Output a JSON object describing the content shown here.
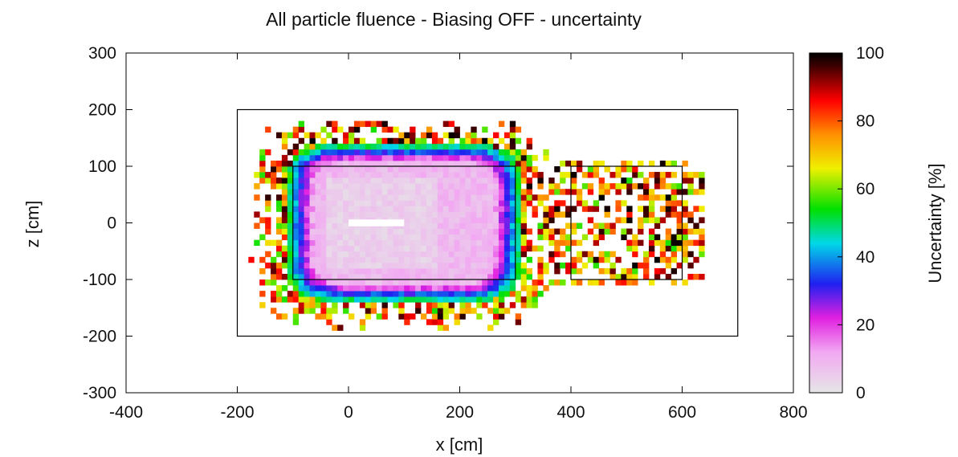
{
  "chart_data": {
    "type": "heatmap",
    "title": "All particle fluence - Biasing OFF - uncertainty",
    "xlabel": "x [cm]",
    "ylabel": "z [cm]",
    "xlim": [
      -400,
      800
    ],
    "ylim": [
      -300,
      300
    ],
    "x_ticks": [
      -400,
      -200,
      0,
      200,
      400,
      600,
      800
    ],
    "y_ticks": [
      -300,
      -200,
      -100,
      0,
      100,
      200,
      300
    ],
    "colorbar": {
      "label": "Uncertainty [%]",
      "range": [
        0,
        100
      ],
      "ticks": [
        0,
        20,
        40,
        60,
        80,
        100
      ],
      "colormap": [
        {
          "v": 0,
          "color": "#e6e6e6"
        },
        {
          "v": 12,
          "color": "#f2a8f2"
        },
        {
          "v": 22,
          "color": "#e020e0"
        },
        {
          "v": 32,
          "color": "#2020f0"
        },
        {
          "v": 44,
          "color": "#00d8e8"
        },
        {
          "v": 54,
          "color": "#00e000"
        },
        {
          "v": 66,
          "color": "#f0f000"
        },
        {
          "v": 76,
          "color": "#ff9000"
        },
        {
          "v": 86,
          "color": "#ff0000"
        },
        {
          "v": 96,
          "color": "#400000"
        },
        {
          "v": 100,
          "color": "#000000"
        }
      ]
    },
    "bin_size_cm": 10,
    "geometry_boxes": [
      {
        "name": "outer-box",
        "x": [
          -200,
          700
        ],
        "z": [
          -200,
          200
        ]
      },
      {
        "name": "inner-box",
        "x": [
          -100,
          300
        ],
        "z": [
          -100,
          100
        ]
      },
      {
        "name": "right-box",
        "x": [
          400,
          600
        ],
        "z": [
          -100,
          100
        ]
      }
    ],
    "source_beam": {
      "x": [
        0,
        100
      ],
      "z": [
        -6,
        6
      ],
      "uncertainty": 0
    },
    "distribution": {
      "core_center": [
        100,
        0
      ],
      "core_half_width_x": 210,
      "core_half_width_z": 140,
      "transition_width": 60,
      "sparse_region_x": [
        360,
        640
      ],
      "sparse_region_z": [
        -110,
        110
      ],
      "sparse_fill_fraction": 0.5
    }
  }
}
